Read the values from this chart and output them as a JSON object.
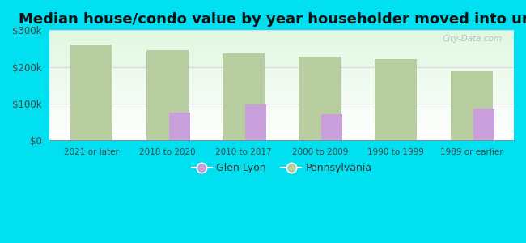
{
  "title": "Median house/condo value by year householder moved into unit",
  "categories": [
    "2021 or later",
    "2018 to 2020",
    "2010 to 2017",
    "2000 to 2009",
    "1990 to 1999",
    "1989 or earlier"
  ],
  "glen_lyon": [
    null,
    75000,
    97000,
    72000,
    null,
    87000
  ],
  "pennsylvania": [
    262000,
    245000,
    237000,
    228000,
    222000,
    188000
  ],
  "glen_lyon_color": "#c9a0dc",
  "pennsylvania_color": "#b8ceA0",
  "background_outer": "#00e0f0",
  "ylim": [
    0,
    300000
  ],
  "yticks": [
    0,
    100000,
    200000,
    300000
  ],
  "ytick_labels": [
    "$0",
    "$100k",
    "$200k",
    "$300k"
  ],
  "pa_bar_width": 0.55,
  "gl_bar_width": 0.28,
  "title_fontsize": 13,
  "legend_glen_lyon": "Glen Lyon",
  "legend_pennsylvania": "Pennsylvania",
  "watermark": "City-Data.com"
}
